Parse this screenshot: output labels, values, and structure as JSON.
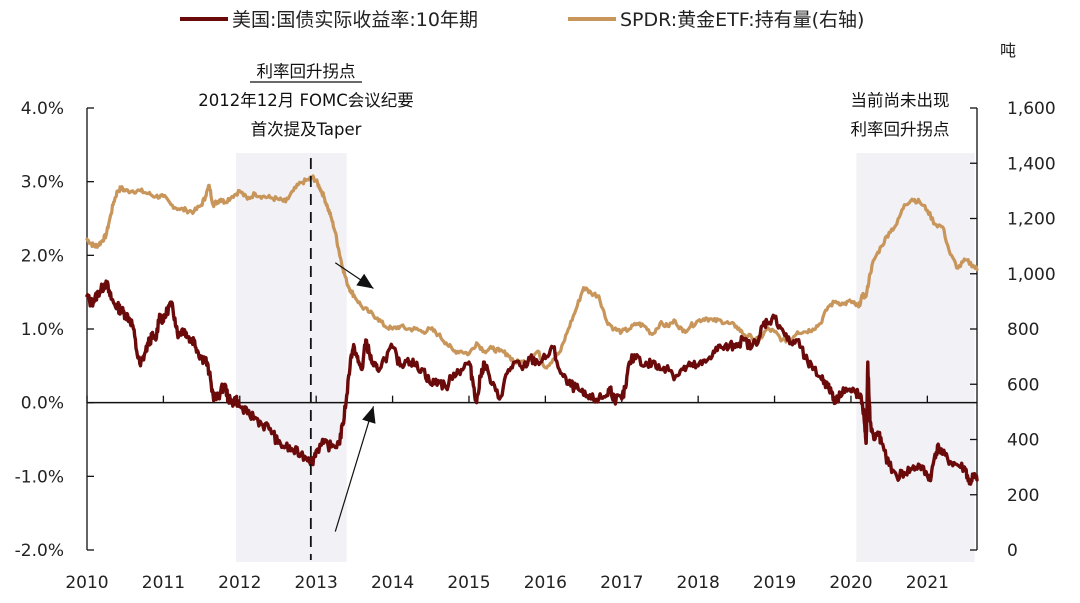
{
  "chart_data": {
    "type": "line",
    "title": "",
    "legend": {
      "placement": "top",
      "entries": [
        {
          "name": "美国:国债实际收益率:10年期",
          "color": "#6b0a0a",
          "axis": "left"
        },
        {
          "name": "SPDR:黄金ETF:持有量(右轴)",
          "color": "#c8955a",
          "axis": "right"
        }
      ]
    },
    "x_axis": {
      "type": "time",
      "range": [
        2010.0,
        2021.65
      ],
      "ticks": [
        2010,
        2011,
        2012,
        2013,
        2014,
        2015,
        2016,
        2017,
        2018,
        2019,
        2020,
        2021
      ],
      "tick_labels": [
        "2010",
        "2011",
        "2012",
        "2013",
        "2014",
        "2015",
        "2016",
        "2017",
        "2018",
        "2019",
        "2020",
        "2021"
      ]
    },
    "y_left": {
      "range": [
        -2.0,
        4.0
      ],
      "ticks": [
        -2.0,
        -1.0,
        0.0,
        1.0,
        2.0,
        3.0,
        4.0
      ],
      "tick_labels": [
        "-2.0%",
        "-1.0%",
        "0.0%",
        "1.0%",
        "2.0%",
        "3.0%",
        "4.0%"
      ],
      "unit": "%"
    },
    "y_right": {
      "range": [
        0,
        1600
      ],
      "ticks": [
        0,
        200,
        400,
        600,
        800,
        1000,
        1200,
        1400,
        1600
      ],
      "tick_labels": [
        "0",
        "200",
        "400",
        "600",
        "800",
        "1,000",
        "1,200",
        "1,400",
        "1,600"
      ],
      "unit_label": "吨"
    },
    "grid": false,
    "series": [
      {
        "name": "美国:国债实际收益率:10年期",
        "axis": "left",
        "color": "#6b0a0a",
        "x": [
          2010.0,
          2010.05,
          2010.1,
          2010.15,
          2010.2,
          2010.25,
          2010.3,
          2010.35,
          2010.4,
          2010.45,
          2010.5,
          2010.55,
          2010.6,
          2010.65,
          2010.7,
          2010.75,
          2010.8,
          2010.85,
          2010.9,
          2010.95,
          2011.0,
          2011.05,
          2011.1,
          2011.15,
          2011.2,
          2011.25,
          2011.3,
          2011.35,
          2011.4,
          2011.45,
          2011.5,
          2011.55,
          2011.6,
          2011.65,
          2011.7,
          2011.75,
          2011.8,
          2011.85,
          2011.9,
          2011.95,
          2012.0,
          2012.1,
          2012.2,
          2012.3,
          2012.4,
          2012.5,
          2012.6,
          2012.7,
          2012.8,
          2012.9,
          2012.95,
          2013.0,
          2013.1,
          2013.2,
          2013.3,
          2013.35,
          2013.4,
          2013.45,
          2013.5,
          2013.55,
          2013.6,
          2013.65,
          2013.7,
          2013.75,
          2013.8,
          2013.9,
          2014.0,
          2014.1,
          2014.2,
          2014.3,
          2014.4,
          2014.5,
          2014.6,
          2014.7,
          2014.8,
          2014.9,
          2015.0,
          2015.05,
          2015.1,
          2015.15,
          2015.2,
          2015.3,
          2015.4,
          2015.5,
          2015.6,
          2015.7,
          2015.8,
          2015.9,
          2016.0,
          2016.1,
          2016.2,
          2016.3,
          2016.4,
          2016.5,
          2016.6,
          2016.7,
          2016.8,
          2016.85,
          2016.9,
          2017.0,
          2017.05,
          2017.1,
          2017.2,
          2017.3,
          2017.4,
          2017.5,
          2017.6,
          2017.7,
          2017.8,
          2017.9,
          2018.0,
          2018.1,
          2018.2,
          2018.3,
          2018.4,
          2018.5,
          2018.6,
          2018.7,
          2018.8,
          2018.85,
          2018.9,
          2019.0,
          2019.1,
          2019.2,
          2019.3,
          2019.4,
          2019.5,
          2019.6,
          2019.65,
          2019.7,
          2019.75,
          2019.8,
          2019.9,
          2020.0,
          2020.05,
          2020.1,
          2020.15,
          2020.18,
          2020.2,
          2020.21,
          2020.22,
          2020.25,
          2020.3,
          2020.35,
          2020.4,
          2020.5,
          2020.6,
          2020.7,
          2020.8,
          2020.9,
          2021.0,
          2021.05,
          2021.1,
          2021.15,
          2021.2,
          2021.3,
          2021.4,
          2021.5,
          2021.55,
          2021.6,
          2021.65
        ],
        "values": [
          1.45,
          1.35,
          1.4,
          1.5,
          1.55,
          1.65,
          1.45,
          1.35,
          1.3,
          1.25,
          1.2,
          1.15,
          1.05,
          0.7,
          0.5,
          0.65,
          0.8,
          0.9,
          0.85,
          1.2,
          1.1,
          1.25,
          1.35,
          1.15,
          0.9,
          1.0,
          0.95,
          0.85,
          0.85,
          0.7,
          0.6,
          0.6,
          0.4,
          0.1,
          0.05,
          0.15,
          0.25,
          0.05,
          0.0,
          0.05,
          -0.05,
          -0.15,
          -0.2,
          -0.3,
          -0.35,
          -0.55,
          -0.6,
          -0.65,
          -0.7,
          -0.75,
          -0.8,
          -0.65,
          -0.55,
          -0.6,
          -0.55,
          -0.3,
          0.1,
          0.6,
          0.75,
          0.55,
          0.45,
          0.85,
          0.65,
          0.5,
          0.45,
          0.6,
          0.75,
          0.5,
          0.6,
          0.5,
          0.45,
          0.25,
          0.3,
          0.2,
          0.4,
          0.45,
          0.55,
          0.3,
          0.0,
          0.35,
          0.55,
          0.25,
          0.05,
          0.4,
          0.55,
          0.45,
          0.6,
          0.55,
          0.6,
          0.75,
          0.4,
          0.25,
          0.2,
          0.1,
          0.05,
          0.05,
          0.1,
          0.2,
          0.05,
          0.05,
          0.2,
          0.55,
          0.65,
          0.5,
          0.55,
          0.45,
          0.5,
          0.35,
          0.45,
          0.5,
          0.5,
          0.55,
          0.7,
          0.75,
          0.75,
          0.8,
          0.85,
          0.75,
          0.9,
          1.05,
          1.1,
          1.15,
          1.0,
          0.8,
          0.85,
          0.6,
          0.45,
          0.35,
          0.3,
          0.2,
          0.15,
          0.0,
          0.2,
          0.15,
          0.15,
          0.1,
          0.0,
          -0.3,
          -0.55,
          -0.1,
          0.55,
          -0.25,
          -0.5,
          -0.4,
          -0.55,
          -0.85,
          -1.0,
          -0.95,
          -0.9,
          -0.85,
          -1.0,
          -1.0,
          -0.7,
          -0.6,
          -0.7,
          -0.8,
          -0.85,
          -0.9,
          -1.1,
          -1.0,
          -1.05
        ]
      },
      {
        "name": "SPDR:黄金ETF:持有量(右轴)",
        "axis": "right",
        "color": "#c8955a",
        "x": [
          2010.0,
          2010.05,
          2010.1,
          2010.15,
          2010.2,
          2010.25,
          2010.3,
          2010.35,
          2010.4,
          2010.45,
          2010.5,
          2010.6,
          2010.7,
          2010.8,
          2010.9,
          2011.0,
          2011.1,
          2011.2,
          2011.3,
          2011.4,
          2011.5,
          2011.55,
          2011.6,
          2011.65,
          2011.7,
          2011.75,
          2011.8,
          2011.9,
          2012.0,
          2012.1,
          2012.2,
          2012.3,
          2012.4,
          2012.5,
          2012.6,
          2012.7,
          2012.8,
          2012.9,
          2012.95,
          2013.0,
          2013.05,
          2013.1,
          2013.15,
          2013.2,
          2013.25,
          2013.3,
          2013.35,
          2013.4,
          2013.45,
          2013.5,
          2013.6,
          2013.7,
          2013.8,
          2013.9,
          2014.0,
          2014.1,
          2014.2,
          2014.3,
          2014.4,
          2014.5,
          2014.6,
          2014.7,
          2014.8,
          2014.9,
          2015.0,
          2015.1,
          2015.2,
          2015.3,
          2015.4,
          2015.5,
          2015.6,
          2015.7,
          2015.8,
          2015.9,
          2016.0,
          2016.1,
          2016.2,
          2016.3,
          2016.4,
          2016.5,
          2016.6,
          2016.7,
          2016.8,
          2016.9,
          2017.0,
          2017.1,
          2017.2,
          2017.3,
          2017.4,
          2017.5,
          2017.6,
          2017.7,
          2017.8,
          2017.9,
          2018.0,
          2018.1,
          2018.2,
          2018.3,
          2018.4,
          2018.5,
          2018.6,
          2018.7,
          2018.8,
          2018.9,
          2019.0,
          2019.1,
          2019.2,
          2019.3,
          2019.4,
          2019.5,
          2019.6,
          2019.7,
          2019.8,
          2019.9,
          2020.0,
          2020.05,
          2020.1,
          2020.15,
          2020.2,
          2020.25,
          2020.3,
          2020.4,
          2020.5,
          2020.6,
          2020.7,
          2020.8,
          2020.9,
          2021.0,
          2021.1,
          2021.2,
          2021.3,
          2021.4,
          2021.5,
          2021.6,
          2021.65
        ],
        "values": [
          1125,
          1110,
          1100,
          1105,
          1120,
          1140,
          1200,
          1260,
          1300,
          1310,
          1300,
          1300,
          1300,
          1290,
          1280,
          1280,
          1250,
          1235,
          1230,
          1225,
          1250,
          1280,
          1320,
          1250,
          1260,
          1270,
          1260,
          1280,
          1300,
          1270,
          1290,
          1280,
          1275,
          1270,
          1260,
          1300,
          1330,
          1340,
          1350,
          1335,
          1310,
          1280,
          1240,
          1200,
          1150,
          1080,
          1020,
          970,
          940,
          920,
          880,
          860,
          840,
          810,
          800,
          810,
          800,
          800,
          790,
          800,
          780,
          750,
          720,
          720,
          710,
          750,
          720,
          730,
          720,
          710,
          680,
          680,
          690,
          720,
          660,
          690,
          720,
          800,
          870,
          950,
          930,
          920,
          830,
          800,
          790,
          800,
          820,
          810,
          780,
          820,
          810,
          830,
          790,
          810,
          830,
          840,
          830,
          830,
          820,
          810,
          780,
          770,
          760,
          800,
          790,
          760,
          760,
          790,
          790,
          800,
          820,
          880,
          900,
          890,
          900,
          890,
          880,
          920,
          920,
          1000,
          1050,
          1100,
          1150,
          1180,
          1250,
          1270,
          1260,
          1230,
          1180,
          1170,
          1070,
          1020,
          1050,
          1030,
          1015
        ]
      }
    ],
    "shaded_regions": [
      {
        "x_start": 2011.95,
        "x_end": 2013.4,
        "color": "#f2f1f5"
      },
      {
        "x_start": 2020.07,
        "x_end": 2021.62,
        "color": "#f2f1f5"
      }
    ],
    "reference_lines": [
      {
        "type": "vertical",
        "x": 2012.93,
        "style": "dashed",
        "color": "#111111"
      }
    ],
    "annotations": [
      {
        "id": "left-note",
        "lines": [
          "利率回升拐点",
          "2012年12月  FOMC会议纪要",
          "首次提及Taper"
        ],
        "underline_first": true
      },
      {
        "id": "right-note",
        "lines": [
          "当前尚未出现",
          "利率回升拐点"
        ],
        "underline_first": false
      }
    ],
    "arrows": [
      {
        "from": [
          2013.25,
          1.9
        ],
        "to": [
          2013.75,
          1.55
        ],
        "axis": "left",
        "note": "downward arrow toward gold holdings drop"
      },
      {
        "from": [
          2013.25,
          -1.75
        ],
        "to": [
          2013.75,
          -0.05
        ],
        "axis": "left",
        "note": "upward arrow toward real yield rise"
      }
    ]
  }
}
